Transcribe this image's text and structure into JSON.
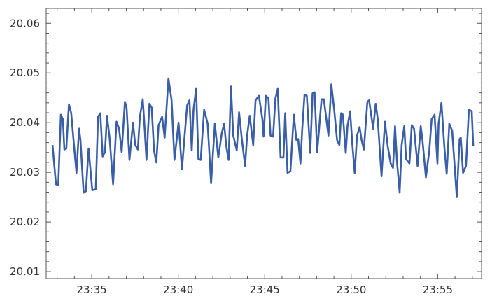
{
  "chart_data": {
    "type": "line",
    "title": "",
    "xlabel": "",
    "ylabel": "",
    "xlim": [
      "23:32:22",
      "23:57:32"
    ],
    "ylim": [
      20.0086,
      20.063
    ],
    "x_ticks": [
      "23:35",
      "23:40",
      "23:45",
      "23:50",
      "23:55"
    ],
    "y_ticks": [
      "20.01",
      "20.02",
      "20.03",
      "20.04",
      "20.05",
      "20.06"
    ],
    "grid": false,
    "line_color": "#3a5ea8",
    "series": [
      {
        "x": [
          "23:32:44",
          "23:32:56",
          "23:33:04",
          "23:33:13",
          "23:33:20",
          "23:33:25",
          "23:33:32",
          "23:33:41",
          "23:33:49",
          "23:33:57",
          "23:34:07",
          "23:34:16",
          "23:34:21",
          "23:34:32",
          "23:34:40",
          "23:34:49",
          "23:35:02",
          "23:35:14",
          "23:35:22",
          "23:35:30",
          "23:35:38",
          "23:35:46",
          "23:35:53",
          "23:36:02",
          "23:36:14",
          "23:36:26",
          "23:36:35",
          "23:36:44",
          "23:36:55",
          "23:37:01",
          "23:37:11",
          "23:37:23",
          "23:37:31",
          "23:37:40",
          "23:37:47",
          "23:37:57",
          "23:38:04",
          "23:38:10",
          "23:38:20",
          "23:38:28",
          "23:38:36",
          "23:38:44",
          "23:38:52",
          "23:39:04",
          "23:39:13",
          "23:39:26",
          "23:39:37",
          "23:39:47",
          "23:40:01",
          "23:40:07",
          "23:40:13",
          "23:40:21",
          "23:40:31",
          "23:40:39",
          "23:40:47",
          "23:40:53",
          "23:41:02",
          "23:41:10",
          "23:41:18",
          "23:41:30",
          "23:41:42",
          "23:41:54",
          "23:42:07",
          "23:42:19",
          "23:42:31",
          "23:42:39",
          "23:42:47",
          "23:42:55",
          "23:43:03",
          "23:43:11",
          "23:43:23",
          "23:43:31",
          "23:43:40",
          "23:43:52",
          "23:43:59",
          "23:44:08",
          "23:44:20",
          "23:44:28",
          "23:44:40",
          "23:44:52",
          "23:44:56",
          "23:45:04",
          "23:45:13",
          "23:45:20",
          "23:45:29",
          "23:45:37",
          "23:45:45",
          "23:45:55",
          "23:46:05",
          "23:46:11",
          "23:46:19",
          "23:46:29",
          "23:46:41",
          "23:46:50",
          "23:46:56",
          "23:47:04",
          "23:47:10",
          "23:47:18",
          "23:47:26",
          "23:47:38",
          "23:47:46",
          "23:47:53",
          "23:48:02",
          "23:48:17",
          "23:48:25",
          "23:48:41",
          "23:48:51",
          "23:49:01",
          "23:49:11",
          "23:49:19",
          "23:49:25",
          "23:49:31",
          "23:49:41",
          "23:49:47",
          "23:49:56",
          "23:50:04",
          "23:50:12",
          "23:50:20",
          "23:50:29",
          "23:50:36",
          "23:50:44",
          "23:50:56",
          "23:51:02",
          "23:51:16",
          "23:51:25",
          "23:51:32",
          "23:51:45",
          "23:51:57",
          "23:52:07",
          "23:52:17",
          "23:52:25",
          "23:52:32",
          "23:52:39",
          "23:52:48",
          "23:52:55",
          "23:53:04",
          "23:53:10",
          "23:53:22",
          "23:53:30",
          "23:53:38",
          "23:53:50",
          "23:54:01",
          "23:54:07",
          "23:54:19",
          "23:54:31",
          "23:54:39",
          "23:54:49",
          "23:54:59",
          "23:55:03",
          "23:55:13",
          "23:55:23",
          "23:55:31",
          "23:55:40",
          "23:55:50",
          "23:55:58",
          "23:56:06",
          "23:56:16",
          "23:56:20",
          "23:56:28",
          "23:56:38",
          "23:56:48",
          "23:56:58",
          "23:57:03"
        ],
        "y": [
          20.0355,
          20.0276,
          20.0274,
          20.0416,
          20.0407,
          20.0346,
          20.0348,
          20.0437,
          20.0419,
          20.0365,
          20.0299,
          20.0388,
          20.0365,
          20.0259,
          20.0262,
          20.0348,
          20.0264,
          20.0266,
          20.0412,
          20.0419,
          20.0332,
          20.0341,
          20.0414,
          20.037,
          20.0276,
          20.0402,
          20.0388,
          20.0341,
          20.0442,
          20.043,
          20.0325,
          20.04,
          20.0355,
          20.0346,
          20.0412,
          20.0447,
          20.0384,
          20.0325,
          20.0438,
          20.043,
          20.0344,
          20.032,
          20.0395,
          20.0412,
          20.037,
          20.0489,
          20.0445,
          20.0325,
          20.04,
          20.0355,
          20.0306,
          20.0365,
          20.0435,
          20.0445,
          20.0344,
          20.0426,
          20.0468,
          20.0327,
          20.0325,
          20.0426,
          20.0398,
          20.0278,
          20.0398,
          20.033,
          20.0379,
          20.0398,
          20.0351,
          20.0325,
          20.0473,
          20.0374,
          20.0344,
          20.0421,
          20.037,
          20.0313,
          20.0374,
          20.0414,
          20.0355,
          20.0445,
          20.0454,
          20.0407,
          20.0372,
          20.0454,
          20.0449,
          20.0374,
          20.0372,
          20.0449,
          20.0468,
          20.033,
          20.033,
          20.0419,
          20.0299,
          20.0302,
          20.0416,
          20.0365,
          20.0367,
          20.0318,
          20.0386,
          20.0456,
          20.0454,
          20.0339,
          20.0459,
          20.0461,
          20.0341,
          20.0447,
          20.0447,
          20.0374,
          20.0477,
          20.0426,
          20.0365,
          20.0355,
          20.0419,
          20.0416,
          20.0339,
          20.0393,
          20.0423,
          20.0355,
          20.0299,
          20.0374,
          20.0391,
          20.0365,
          20.0346,
          20.0442,
          20.0445,
          20.0388,
          20.0438,
          20.0407,
          20.0292,
          20.0402,
          20.0351,
          20.0318,
          20.0309,
          20.0393,
          20.032,
          20.0259,
          20.0355,
          20.0393,
          20.0327,
          20.0318,
          20.0395,
          20.0388,
          20.0313,
          20.0393,
          20.0365,
          20.029,
          20.0344,
          20.0407,
          20.0416,
          20.0318,
          20.0398,
          20.044,
          20.0351,
          20.0297,
          20.0398,
          20.0384,
          20.0318,
          20.025,
          20.0367,
          20.037,
          20.0299,
          20.0313,
          20.0426,
          20.0423,
          20.0353
        ]
      }
    ]
  }
}
